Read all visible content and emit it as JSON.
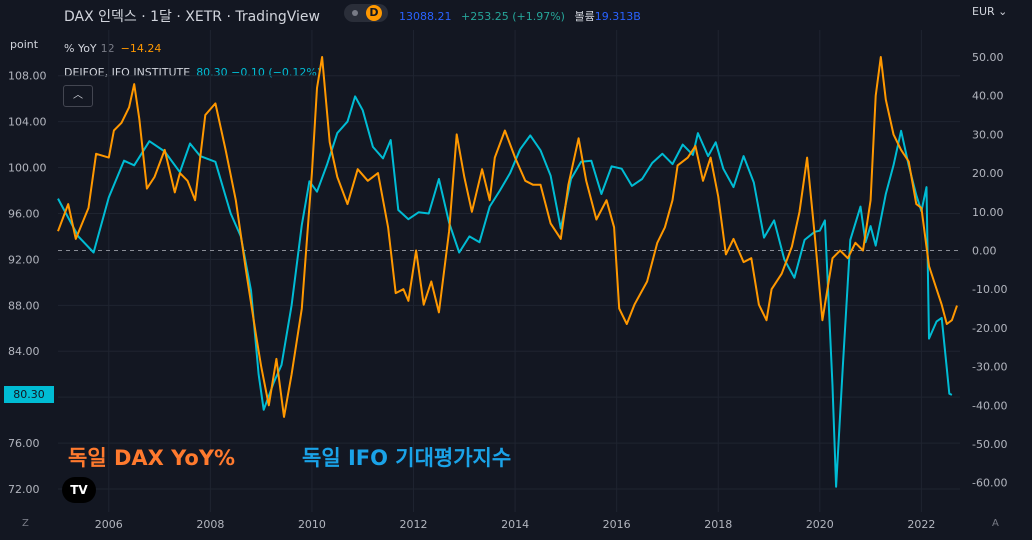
{
  "header": {
    "title": "DAX 인덱스 · 1달 · XETR · TradingView",
    "badge": "D",
    "price": "13088.21",
    "change": "+253.25 (+1.97%)",
    "volume_label": "볼륨",
    "volume_value": "19.313B",
    "currency": "EUR"
  },
  "legend": {
    "yoy_name": "% YoY",
    "yoy_param": "12",
    "yoy_value": "−14.24",
    "ifo_name": "DEIFOE, IFO INSTITUTE",
    "ifo_value": "80.30 −0.10 (−0.12%)",
    "collapse_icon": "chevron-up-icon"
  },
  "overlay": {
    "dax_label": "독일 DAX YoY%",
    "ifo_label": "독일 IFO 기대평가지수",
    "logo_text": "TV"
  },
  "left_axis_unit": "point",
  "left_badge": "80.30",
  "z_button": "Z",
  "a_button": "A",
  "colors": {
    "background": "#131722",
    "dax": "#ff9800",
    "ifo": "#00bcd4",
    "grid": "#1f2430",
    "text": "#b2b5be"
  },
  "chart_data": {
    "type": "line",
    "x_range": [
      2005.0,
      2022.7
    ],
    "x_ticks": [
      "2006",
      "2008",
      "2010",
      "2012",
      "2014",
      "2016",
      "2018",
      "2020",
      "2022"
    ],
    "left_axis": {
      "label": "point",
      "range": [
        70,
        111.5
      ],
      "ticks": [
        "72.00",
        "76.00",
        "80.00",
        "84.00",
        "88.00",
        "92.00",
        "96.00",
        "100.00",
        "104.00",
        "108.00"
      ]
    },
    "right_axis": {
      "label": "%",
      "range": [
        -62,
        55
      ],
      "ticks": [
        "-60.00",
        "-50.00",
        "-40.00",
        "-30.00",
        "-20.00",
        "-10.00",
        "0.00",
        "10.00",
        "20.00",
        "30.00",
        "40.00",
        "50.00"
      ]
    },
    "zero_line": 0,
    "series": [
      {
        "name": "DEIFOE, IFO INSTITUTE",
        "axis": "left",
        "color": "#00bcd4",
        "points": [
          [
            2005.0,
            97.3
          ],
          [
            2005.4,
            94.0
          ],
          [
            2005.7,
            92.6
          ],
          [
            2006.0,
            97.4
          ],
          [
            2006.3,
            100.6
          ],
          [
            2006.5,
            100.2
          ],
          [
            2006.8,
            102.3
          ],
          [
            2007.1,
            101.4
          ],
          [
            2007.4,
            99.6
          ],
          [
            2007.6,
            102.1
          ],
          [
            2007.8,
            101.0
          ],
          [
            2008.1,
            100.5
          ],
          [
            2008.4,
            96.0
          ],
          [
            2008.6,
            94.0
          ],
          [
            2008.8,
            89.3
          ],
          [
            2008.95,
            82.0
          ],
          [
            2009.05,
            78.9
          ],
          [
            2009.25,
            81.3
          ],
          [
            2009.4,
            82.8
          ],
          [
            2009.6,
            88.0
          ],
          [
            2009.8,
            95.0
          ],
          [
            2009.95,
            98.8
          ],
          [
            2010.1,
            97.9
          ],
          [
            2010.3,
            100.3
          ],
          [
            2010.5,
            103.0
          ],
          [
            2010.7,
            104.0
          ],
          [
            2010.85,
            106.2
          ],
          [
            2011.0,
            105.0
          ],
          [
            2011.2,
            101.8
          ],
          [
            2011.4,
            100.8
          ],
          [
            2011.55,
            102.4
          ],
          [
            2011.7,
            96.3
          ],
          [
            2011.9,
            95.5
          ],
          [
            2012.1,
            96.1
          ],
          [
            2012.3,
            96.0
          ],
          [
            2012.5,
            99.0
          ],
          [
            2012.7,
            95.2
          ],
          [
            2012.9,
            92.6
          ],
          [
            2013.1,
            94.0
          ],
          [
            2013.3,
            93.5
          ],
          [
            2013.5,
            96.6
          ],
          [
            2013.7,
            98.0
          ],
          [
            2013.9,
            99.5
          ],
          [
            2014.1,
            101.6
          ],
          [
            2014.3,
            102.8
          ],
          [
            2014.5,
            101.5
          ],
          [
            2014.7,
            99.3
          ],
          [
            2014.9,
            94.7
          ],
          [
            2015.1,
            99.0
          ],
          [
            2015.3,
            100.5
          ],
          [
            2015.5,
            100.6
          ],
          [
            2015.7,
            97.7
          ],
          [
            2015.9,
            100.1
          ],
          [
            2016.1,
            99.9
          ],
          [
            2016.3,
            98.4
          ],
          [
            2016.5,
            99.0
          ],
          [
            2016.7,
            100.4
          ],
          [
            2016.9,
            101.2
          ],
          [
            2017.1,
            100.3
          ],
          [
            2017.3,
            102.0
          ],
          [
            2017.5,
            101.1
          ],
          [
            2017.6,
            103.0
          ],
          [
            2017.8,
            101.0
          ],
          [
            2017.95,
            102.2
          ],
          [
            2018.1,
            99.9
          ],
          [
            2018.3,
            98.3
          ],
          [
            2018.5,
            101.0
          ],
          [
            2018.7,
            98.7
          ],
          [
            2018.9,
            93.9
          ],
          [
            2019.1,
            95.4
          ],
          [
            2019.3,
            92.0
          ],
          [
            2019.5,
            90.4
          ],
          [
            2019.7,
            93.7
          ],
          [
            2019.9,
            94.4
          ],
          [
            2020.0,
            94.5
          ],
          [
            2020.1,
            95.4
          ],
          [
            2020.25,
            81.0
          ],
          [
            2020.32,
            72.2
          ],
          [
            2020.45,
            82.5
          ],
          [
            2020.6,
            93.7
          ],
          [
            2020.8,
            96.6
          ],
          [
            2020.9,
            93.5
          ],
          [
            2021.0,
            94.9
          ],
          [
            2021.1,
            93.2
          ],
          [
            2021.3,
            97.7
          ],
          [
            2021.45,
            100.2
          ],
          [
            2021.6,
            103.2
          ],
          [
            2021.75,
            100.2
          ],
          [
            2021.9,
            97.6
          ],
          [
            2022.0,
            96.2
          ],
          [
            2022.1,
            98.3
          ],
          [
            2022.15,
            85.1
          ],
          [
            2022.3,
            86.6
          ],
          [
            2022.4,
            86.9
          ],
          [
            2022.5,
            82.5
          ],
          [
            2022.55,
            80.3
          ],
          [
            2022.6,
            80.2
          ]
        ]
      },
      {
        "name": "% YoY",
        "axis": "right",
        "color": "#ff9800",
        "points": [
          [
            2005.0,
            5.0
          ],
          [
            2005.2,
            12.0
          ],
          [
            2005.35,
            3.0
          ],
          [
            2005.6,
            11.0
          ],
          [
            2005.75,
            25.0
          ],
          [
            2006.0,
            24.0
          ],
          [
            2006.1,
            31.0
          ],
          [
            2006.25,
            33.0
          ],
          [
            2006.4,
            37.0
          ],
          [
            2006.5,
            43.0
          ],
          [
            2006.6,
            34.0
          ],
          [
            2006.75,
            16.0
          ],
          [
            2006.9,
            19.0
          ],
          [
            2007.1,
            26.0
          ],
          [
            2007.3,
            15.0
          ],
          [
            2007.4,
            20.0
          ],
          [
            2007.55,
            18.0
          ],
          [
            2007.7,
            13.0
          ],
          [
            2007.9,
            35.0
          ],
          [
            2008.1,
            38.0
          ],
          [
            2008.3,
            26.0
          ],
          [
            2008.5,
            13.0
          ],
          [
            2008.7,
            -5.0
          ],
          [
            2008.9,
            -22.0
          ],
          [
            2009.0,
            -30.0
          ],
          [
            2009.15,
            -40.0
          ],
          [
            2009.3,
            -28.0
          ],
          [
            2009.45,
            -43.0
          ],
          [
            2009.6,
            -32.0
          ],
          [
            2009.8,
            -15.0
          ],
          [
            2010.0,
            20.0
          ],
          [
            2010.1,
            42.0
          ],
          [
            2010.2,
            50.0
          ],
          [
            2010.35,
            28.0
          ],
          [
            2010.5,
            19.0
          ],
          [
            2010.7,
            12.0
          ],
          [
            2010.9,
            21.0
          ],
          [
            2011.1,
            18.0
          ],
          [
            2011.3,
            20.0
          ],
          [
            2011.5,
            6.0
          ],
          [
            2011.65,
            -11.0
          ],
          [
            2011.8,
            -10.0
          ],
          [
            2011.9,
            -13.0
          ],
          [
            2012.05,
            0.0
          ],
          [
            2012.2,
            -14.0
          ],
          [
            2012.35,
            -8.0
          ],
          [
            2012.5,
            -16.0
          ],
          [
            2012.7,
            5.0
          ],
          [
            2012.85,
            30.0
          ],
          [
            2013.0,
            19.0
          ],
          [
            2013.15,
            10.0
          ],
          [
            2013.35,
            21.0
          ],
          [
            2013.5,
            13.0
          ],
          [
            2013.6,
            24.0
          ],
          [
            2013.8,
            31.0
          ],
          [
            2014.0,
            24.0
          ],
          [
            2014.2,
            18.0
          ],
          [
            2014.35,
            17.0
          ],
          [
            2014.5,
            17.0
          ],
          [
            2014.7,
            7.0
          ],
          [
            2014.9,
            3.0
          ],
          [
            2015.05,
            17.0
          ],
          [
            2015.25,
            29.0
          ],
          [
            2015.4,
            18.0
          ],
          [
            2015.6,
            8.0
          ],
          [
            2015.8,
            13.0
          ],
          [
            2015.95,
            6.0
          ],
          [
            2016.05,
            -15.0
          ],
          [
            2016.2,
            -19.0
          ],
          [
            2016.35,
            -14.0
          ],
          [
            2016.6,
            -8.0
          ],
          [
            2016.8,
            2.0
          ],
          [
            2016.95,
            6.0
          ],
          [
            2017.1,
            13.0
          ],
          [
            2017.2,
            22.0
          ],
          [
            2017.4,
            24.0
          ],
          [
            2017.55,
            27.0
          ],
          [
            2017.7,
            18.0
          ],
          [
            2017.85,
            24.0
          ],
          [
            2018.0,
            14.0
          ],
          [
            2018.15,
            -1.0
          ],
          [
            2018.3,
            3.0
          ],
          [
            2018.5,
            -3.0
          ],
          [
            2018.65,
            -2.0
          ],
          [
            2018.8,
            -14.0
          ],
          [
            2018.95,
            -18.0
          ],
          [
            2019.05,
            -10.0
          ],
          [
            2019.25,
            -6.0
          ],
          [
            2019.45,
            1.0
          ],
          [
            2019.6,
            10.0
          ],
          [
            2019.75,
            24.0
          ],
          [
            2019.9,
            4.0
          ],
          [
            2020.05,
            -18.0
          ],
          [
            2020.25,
            -2.0
          ],
          [
            2020.4,
            0.0
          ],
          [
            2020.55,
            -2.0
          ],
          [
            2020.7,
            2.0
          ],
          [
            2020.85,
            0.0
          ],
          [
            2021.0,
            13.0
          ],
          [
            2021.1,
            40.0
          ],
          [
            2021.2,
            50.0
          ],
          [
            2021.3,
            39.0
          ],
          [
            2021.45,
            30.0
          ],
          [
            2021.6,
            26.0
          ],
          [
            2021.75,
            23.0
          ],
          [
            2021.9,
            12.0
          ],
          [
            2022.0,
            11.0
          ],
          [
            2022.15,
            -4.0
          ],
          [
            2022.3,
            -10.0
          ],
          [
            2022.4,
            -14.0
          ],
          [
            2022.5,
            -19.0
          ],
          [
            2022.6,
            -18.0
          ],
          [
            2022.7,
            -14.24
          ]
        ]
      }
    ]
  }
}
